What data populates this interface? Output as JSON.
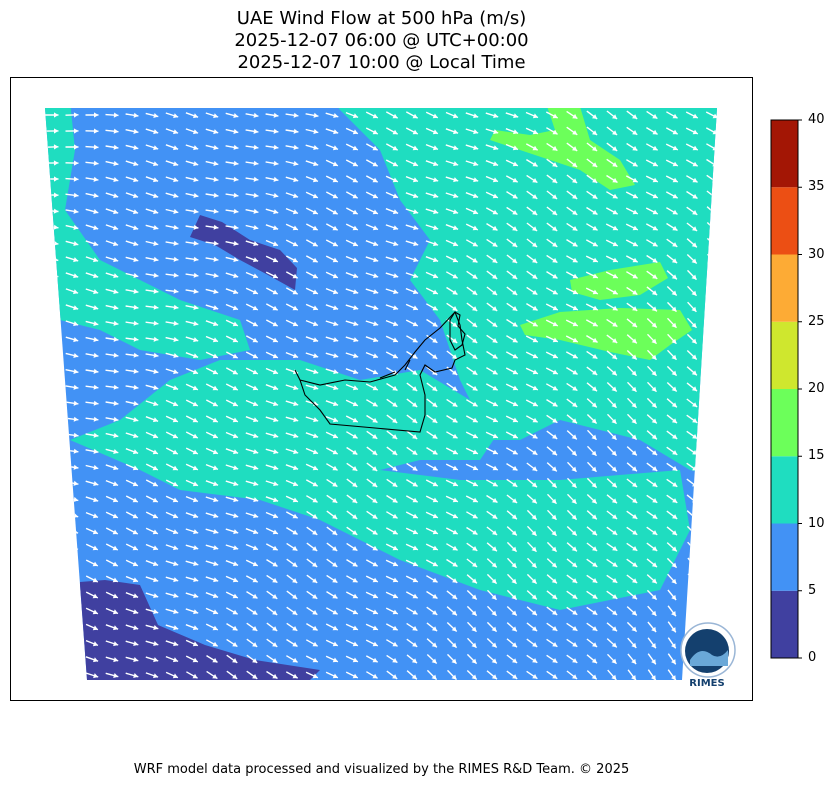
{
  "title": {
    "line1": "UAE Wind Flow at 500 hPa (m/s)",
    "line2": "2025-12-07 06:00 @ UTC+00:00",
    "line3": "2025-12-07 10:00 @ Local Time"
  },
  "footer": "WRF model data processed and visualized by the RIMES R&D Team. © 2025",
  "colorbar": {
    "ticks": [
      "0",
      "5",
      "10",
      "15",
      "20",
      "25",
      "30",
      "35",
      "40"
    ],
    "colors": [
      "#4040a0",
      "#4292f5",
      "#1fddc0",
      "#6cff5a",
      "#cfe72e",
      "#fdab35",
      "#ec4f14",
      "#a31605"
    ]
  },
  "logo": {
    "text": "RIMES"
  },
  "colors": {
    "band_0_5": "#4040a0",
    "band_5_10": "#4292f5",
    "band_10_15": "#1fddc0",
    "band_15_20": "#6cff5a",
    "arrow": "#ffffff",
    "border": "#000000"
  }
}
